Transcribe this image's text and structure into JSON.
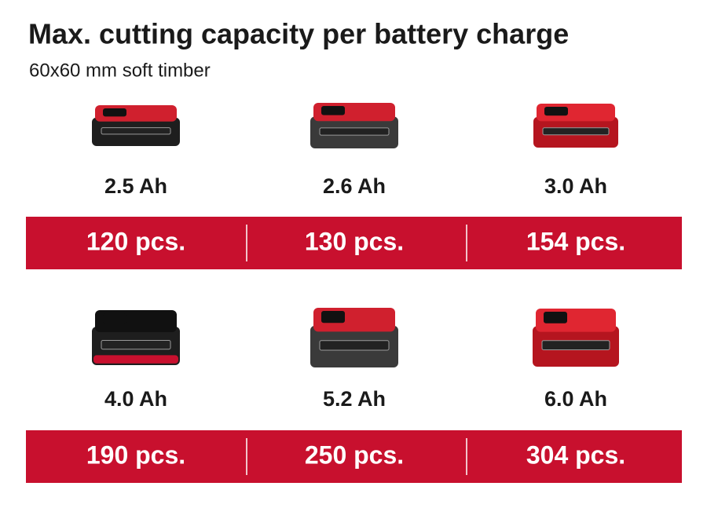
{
  "header": {
    "title": "Max. cutting capacity per battery charge",
    "subtitle": "60x60 mm soft timber"
  },
  "rows": [
    {
      "items": [
        {
          "capacity": "2.5 Ah",
          "count": "120 pcs."
        },
        {
          "capacity": "2.6 Ah",
          "count": "130 pcs."
        },
        {
          "capacity": "3.0 Ah",
          "count": "154 pcs."
        }
      ]
    },
    {
      "items": [
        {
          "capacity": "4.0 Ah",
          "count": "190 pcs."
        },
        {
          "capacity": "5.2 Ah",
          "count": "250 pcs."
        },
        {
          "capacity": "6.0 Ah",
          "count": "304 pcs."
        }
      ]
    }
  ]
}
